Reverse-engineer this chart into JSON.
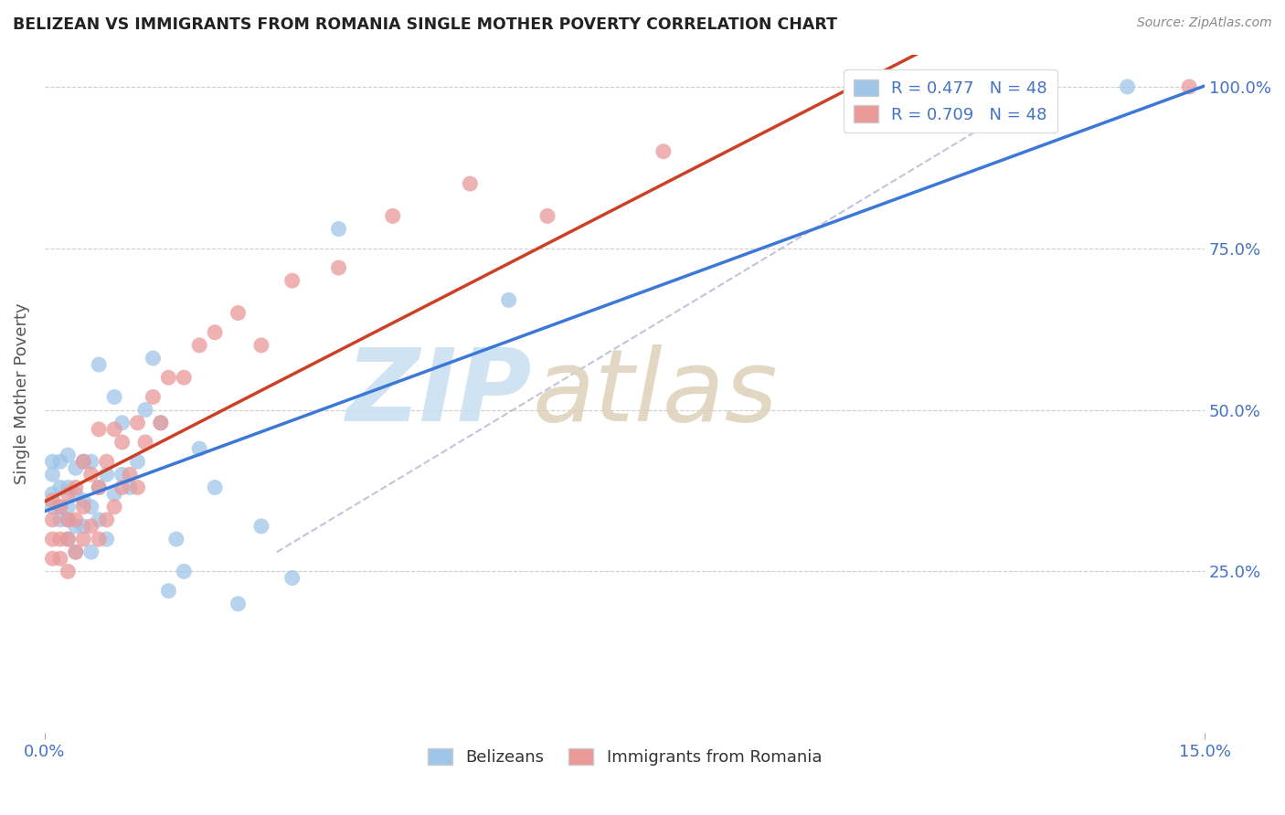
{
  "title": "BELIZEAN VS IMMIGRANTS FROM ROMANIA SINGLE MOTHER POVERTY CORRELATION CHART",
  "source": "Source: ZipAtlas.com",
  "tick_color": "#4472c4",
  "ylabel": "Single Mother Poverty",
  "xmin": 0.0,
  "xmax": 0.15,
  "ymin": 0.0,
  "ymax": 1.05,
  "yticks": [
    0.25,
    0.5,
    0.75,
    1.0
  ],
  "ytick_labels": [
    "25.0%",
    "50.0%",
    "75.0%",
    "100.0%"
  ],
  "r_belizean": 0.477,
  "n_belizean": 48,
  "r_romania": 0.709,
  "n_romania": 48,
  "blue_color": "#9fc5e8",
  "pink_color": "#ea9999",
  "line_blue": "#3c78d8",
  "line_pink": "#cc4125",
  "ref_line_color": "#aaaacc",
  "legend_text_color": "#4472c4",
  "belizean_x": [
    0.001,
    0.001,
    0.001,
    0.001,
    0.002,
    0.002,
    0.002,
    0.002,
    0.003,
    0.003,
    0.003,
    0.003,
    0.003,
    0.004,
    0.004,
    0.004,
    0.004,
    0.005,
    0.005,
    0.005,
    0.006,
    0.006,
    0.006,
    0.007,
    0.007,
    0.007,
    0.008,
    0.008,
    0.009,
    0.009,
    0.01,
    0.01,
    0.011,
    0.012,
    0.013,
    0.014,
    0.015,
    0.016,
    0.017,
    0.018,
    0.02,
    0.022,
    0.025,
    0.028,
    0.032,
    0.038,
    0.06,
    0.14
  ],
  "belizean_y": [
    0.35,
    0.37,
    0.4,
    0.42,
    0.33,
    0.35,
    0.38,
    0.42,
    0.3,
    0.33,
    0.35,
    0.38,
    0.43,
    0.28,
    0.32,
    0.37,
    0.41,
    0.32,
    0.36,
    0.42,
    0.28,
    0.35,
    0.42,
    0.33,
    0.38,
    0.57,
    0.3,
    0.4,
    0.37,
    0.52,
    0.4,
    0.48,
    0.38,
    0.42,
    0.5,
    0.58,
    0.48,
    0.22,
    0.3,
    0.25,
    0.44,
    0.38,
    0.2,
    0.32,
    0.24,
    0.78,
    0.67,
    1.0
  ],
  "romania_x": [
    0.001,
    0.001,
    0.001,
    0.001,
    0.002,
    0.002,
    0.002,
    0.003,
    0.003,
    0.003,
    0.003,
    0.004,
    0.004,
    0.004,
    0.005,
    0.005,
    0.005,
    0.006,
    0.006,
    0.007,
    0.007,
    0.007,
    0.008,
    0.008,
    0.009,
    0.009,
    0.01,
    0.01,
    0.011,
    0.012,
    0.012,
    0.013,
    0.014,
    0.015,
    0.016,
    0.018,
    0.02,
    0.022,
    0.025,
    0.028,
    0.032,
    0.038,
    0.045,
    0.055,
    0.065,
    0.08,
    0.11,
    0.148
  ],
  "romania_y": [
    0.27,
    0.3,
    0.33,
    0.36,
    0.27,
    0.3,
    0.35,
    0.25,
    0.3,
    0.33,
    0.37,
    0.28,
    0.33,
    0.38,
    0.3,
    0.35,
    0.42,
    0.32,
    0.4,
    0.3,
    0.38,
    0.47,
    0.33,
    0.42,
    0.35,
    0.47,
    0.38,
    0.45,
    0.4,
    0.38,
    0.48,
    0.45,
    0.52,
    0.48,
    0.55,
    0.55,
    0.6,
    0.62,
    0.65,
    0.6,
    0.7,
    0.72,
    0.8,
    0.85,
    0.8,
    0.9,
    1.0,
    1.0
  ],
  "ref_line_x0": 0.03,
  "ref_line_y0": 0.28,
  "ref_line_x1": 0.13,
  "ref_line_y1": 1.0
}
